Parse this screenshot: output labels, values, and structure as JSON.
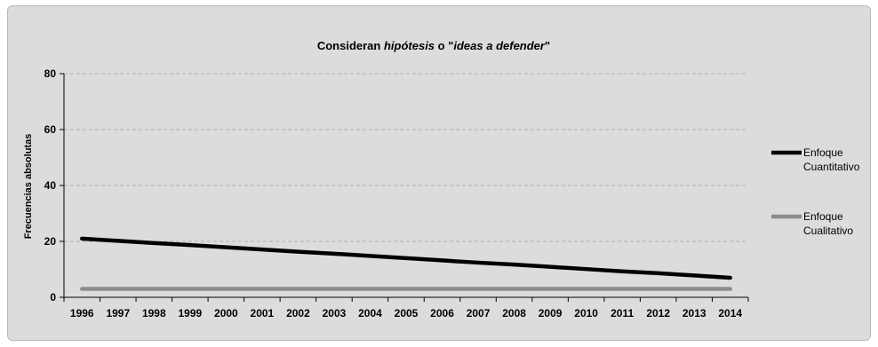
{
  "chart_data": {
    "type": "line",
    "title": {
      "prefix": "Consideran ",
      "italic1": "hipótesis",
      "mid": " o \"",
      "italic2": "ideas a defender",
      "suffix": "\""
    },
    "xlabel": "",
    "ylabel": "Frecuencias absolutas",
    "ylim": [
      0,
      80
    ],
    "yticks": [
      0,
      20,
      40,
      60,
      80
    ],
    "grid": true,
    "legend_position": "right",
    "x": [
      "1996",
      "1997",
      "1998",
      "1999",
      "2000",
      "2001",
      "2002",
      "2003",
      "2004",
      "2005",
      "2006",
      "2007",
      "2008",
      "2009",
      "2010",
      "2011",
      "2012",
      "2013",
      "2014"
    ],
    "series": [
      {
        "name": "Enfoque Cuantitativo",
        "name_lines": [
          "Enfoque",
          "Cuantitativo"
        ],
        "color": "#000000",
        "values": [
          21,
          20.2,
          19.4,
          18.7,
          17.9,
          17.1,
          16.3,
          15.6,
          14.8,
          14.0,
          13.2,
          12.4,
          11.7,
          10.9,
          10.1,
          9.3,
          8.6,
          7.8,
          7.0
        ]
      },
      {
        "name": "Enfoque Cualitativo",
        "name_lines": [
          "Enfoque",
          "Cualitativo"
        ],
        "color": "#8c8c8c",
        "values": [
          3,
          3,
          3,
          3,
          3,
          3,
          3,
          3,
          3,
          3,
          3,
          3,
          3,
          3,
          3,
          3,
          3,
          3,
          3
        ]
      }
    ]
  }
}
